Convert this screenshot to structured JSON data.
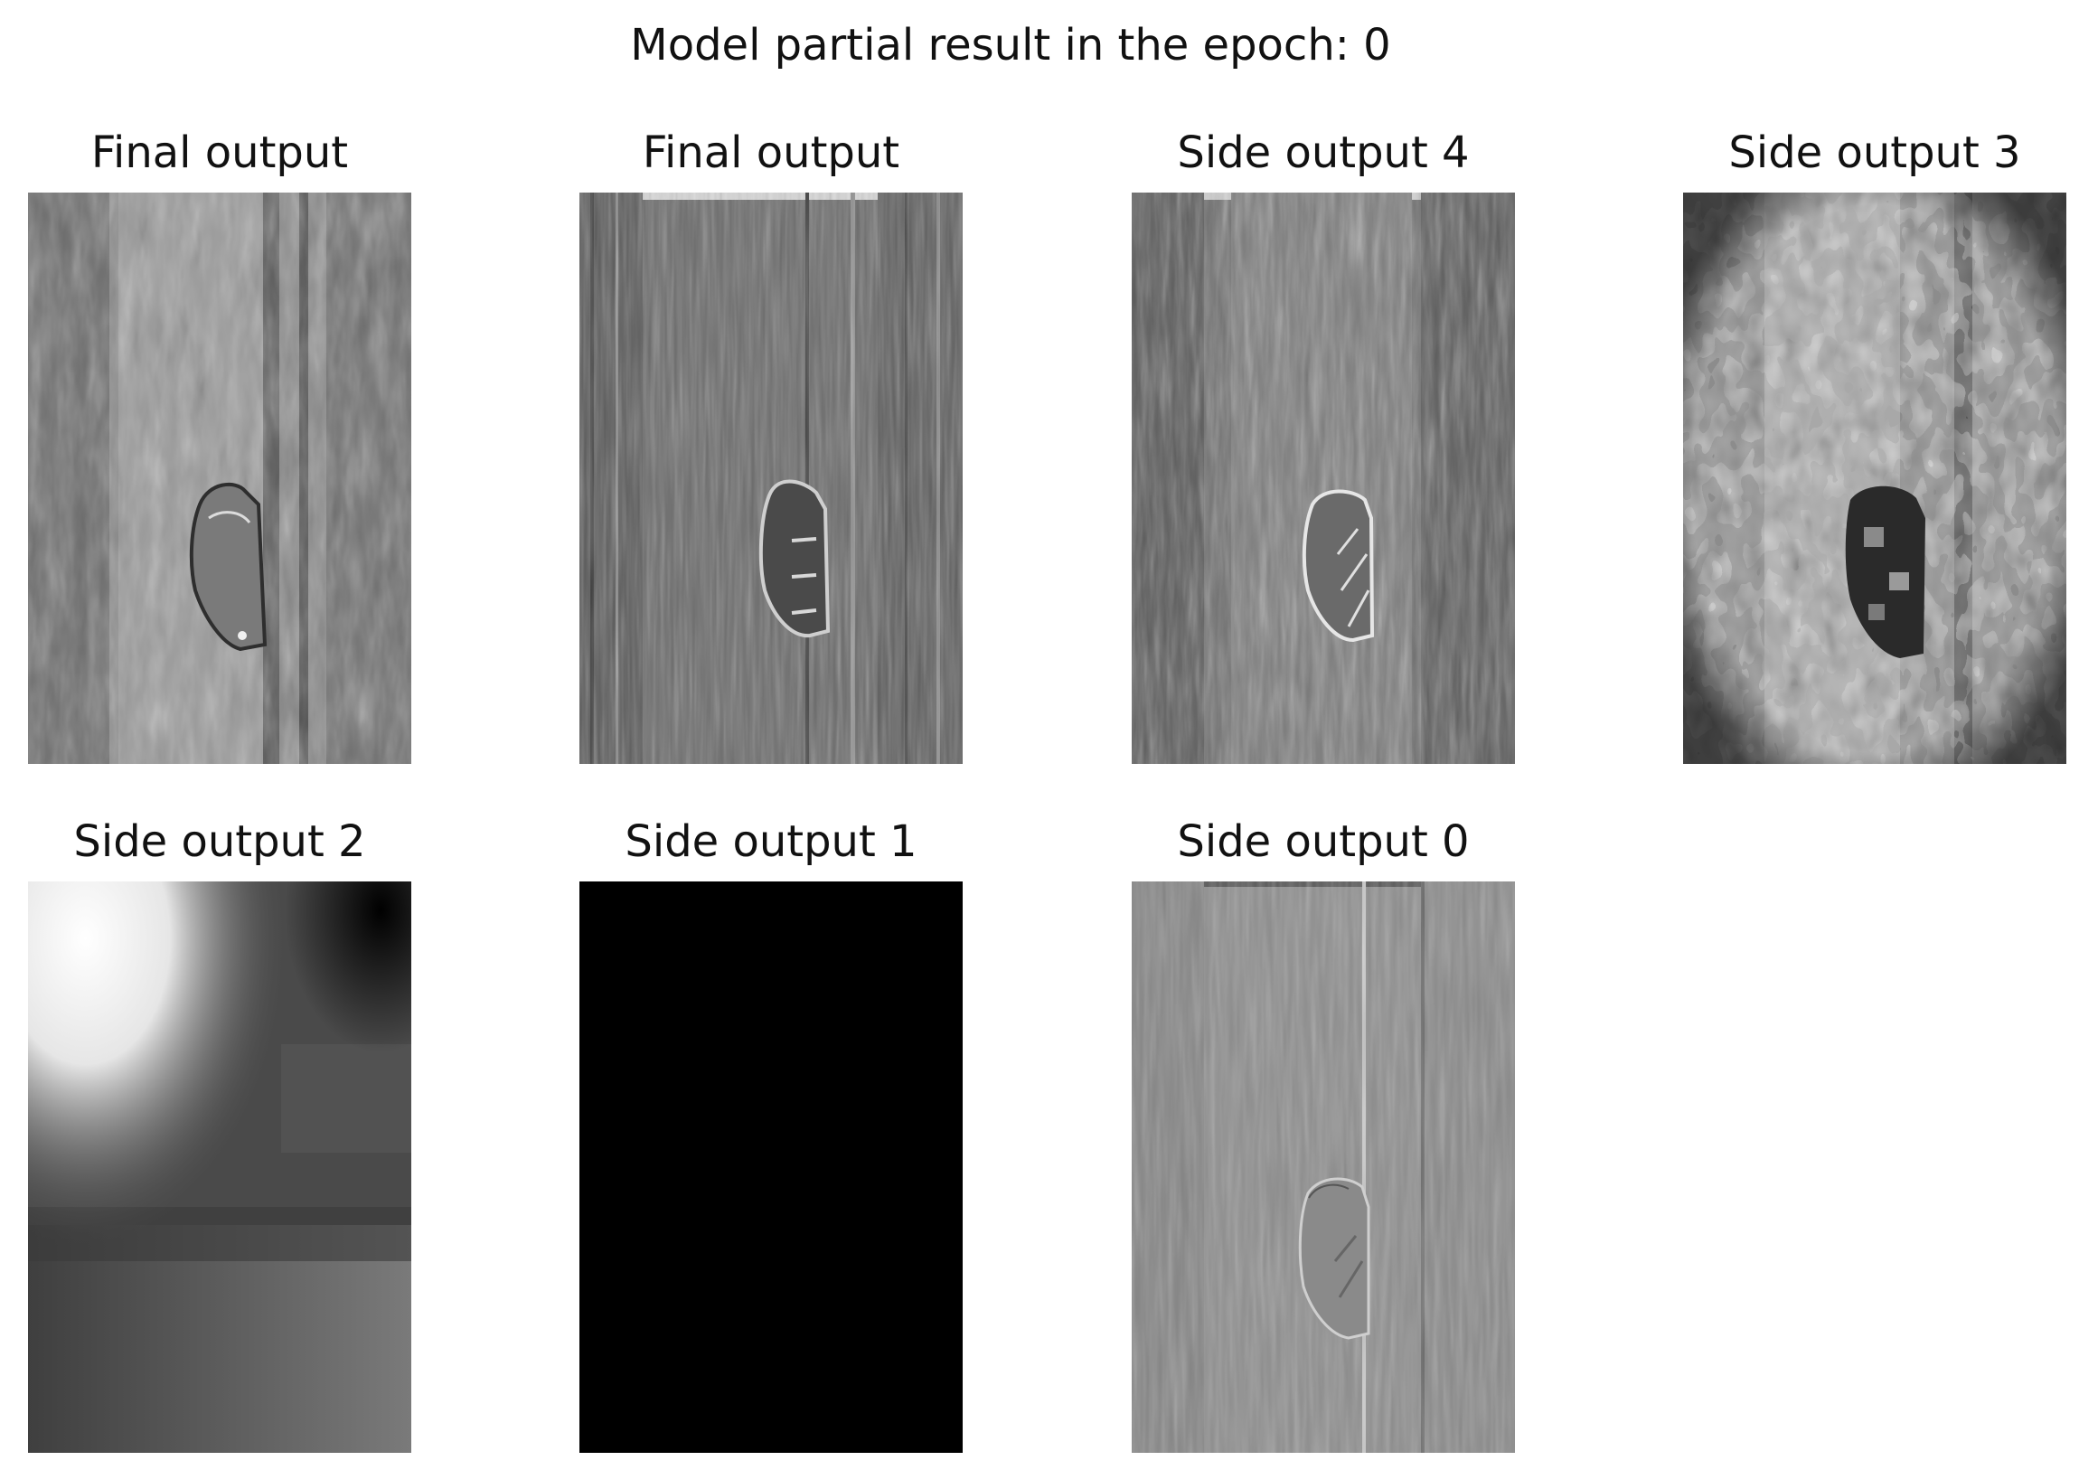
{
  "figure": {
    "suptitle": "Model partial result in the epoch: 0"
  },
  "panels": [
    {
      "title": "Final output",
      "content": "grayscale feature map: vertical tree trunks with bear silhouette, soft and blurred"
    },
    {
      "title": "Final output",
      "content": "grayscale feature map: sharp vertical streaks with dark bear silhouette"
    },
    {
      "title": "Side output 4",
      "content": "grayscale feature map: vertical streaks with light-outlined bear"
    },
    {
      "title": "Side output 3",
      "content": "grayscale feature map: blocky, coarse texture with dark bear region"
    },
    {
      "title": "Side output 2",
      "content": "grayscale feature map: very coarse smooth gradient, bright top-left"
    },
    {
      "title": "Side output 1",
      "content": "grayscale feature map: uniformly black"
    },
    {
      "title": "Side output 0",
      "content": "grayscale feature map: light gray vertical streaks with faint bear outline"
    }
  ]
}
